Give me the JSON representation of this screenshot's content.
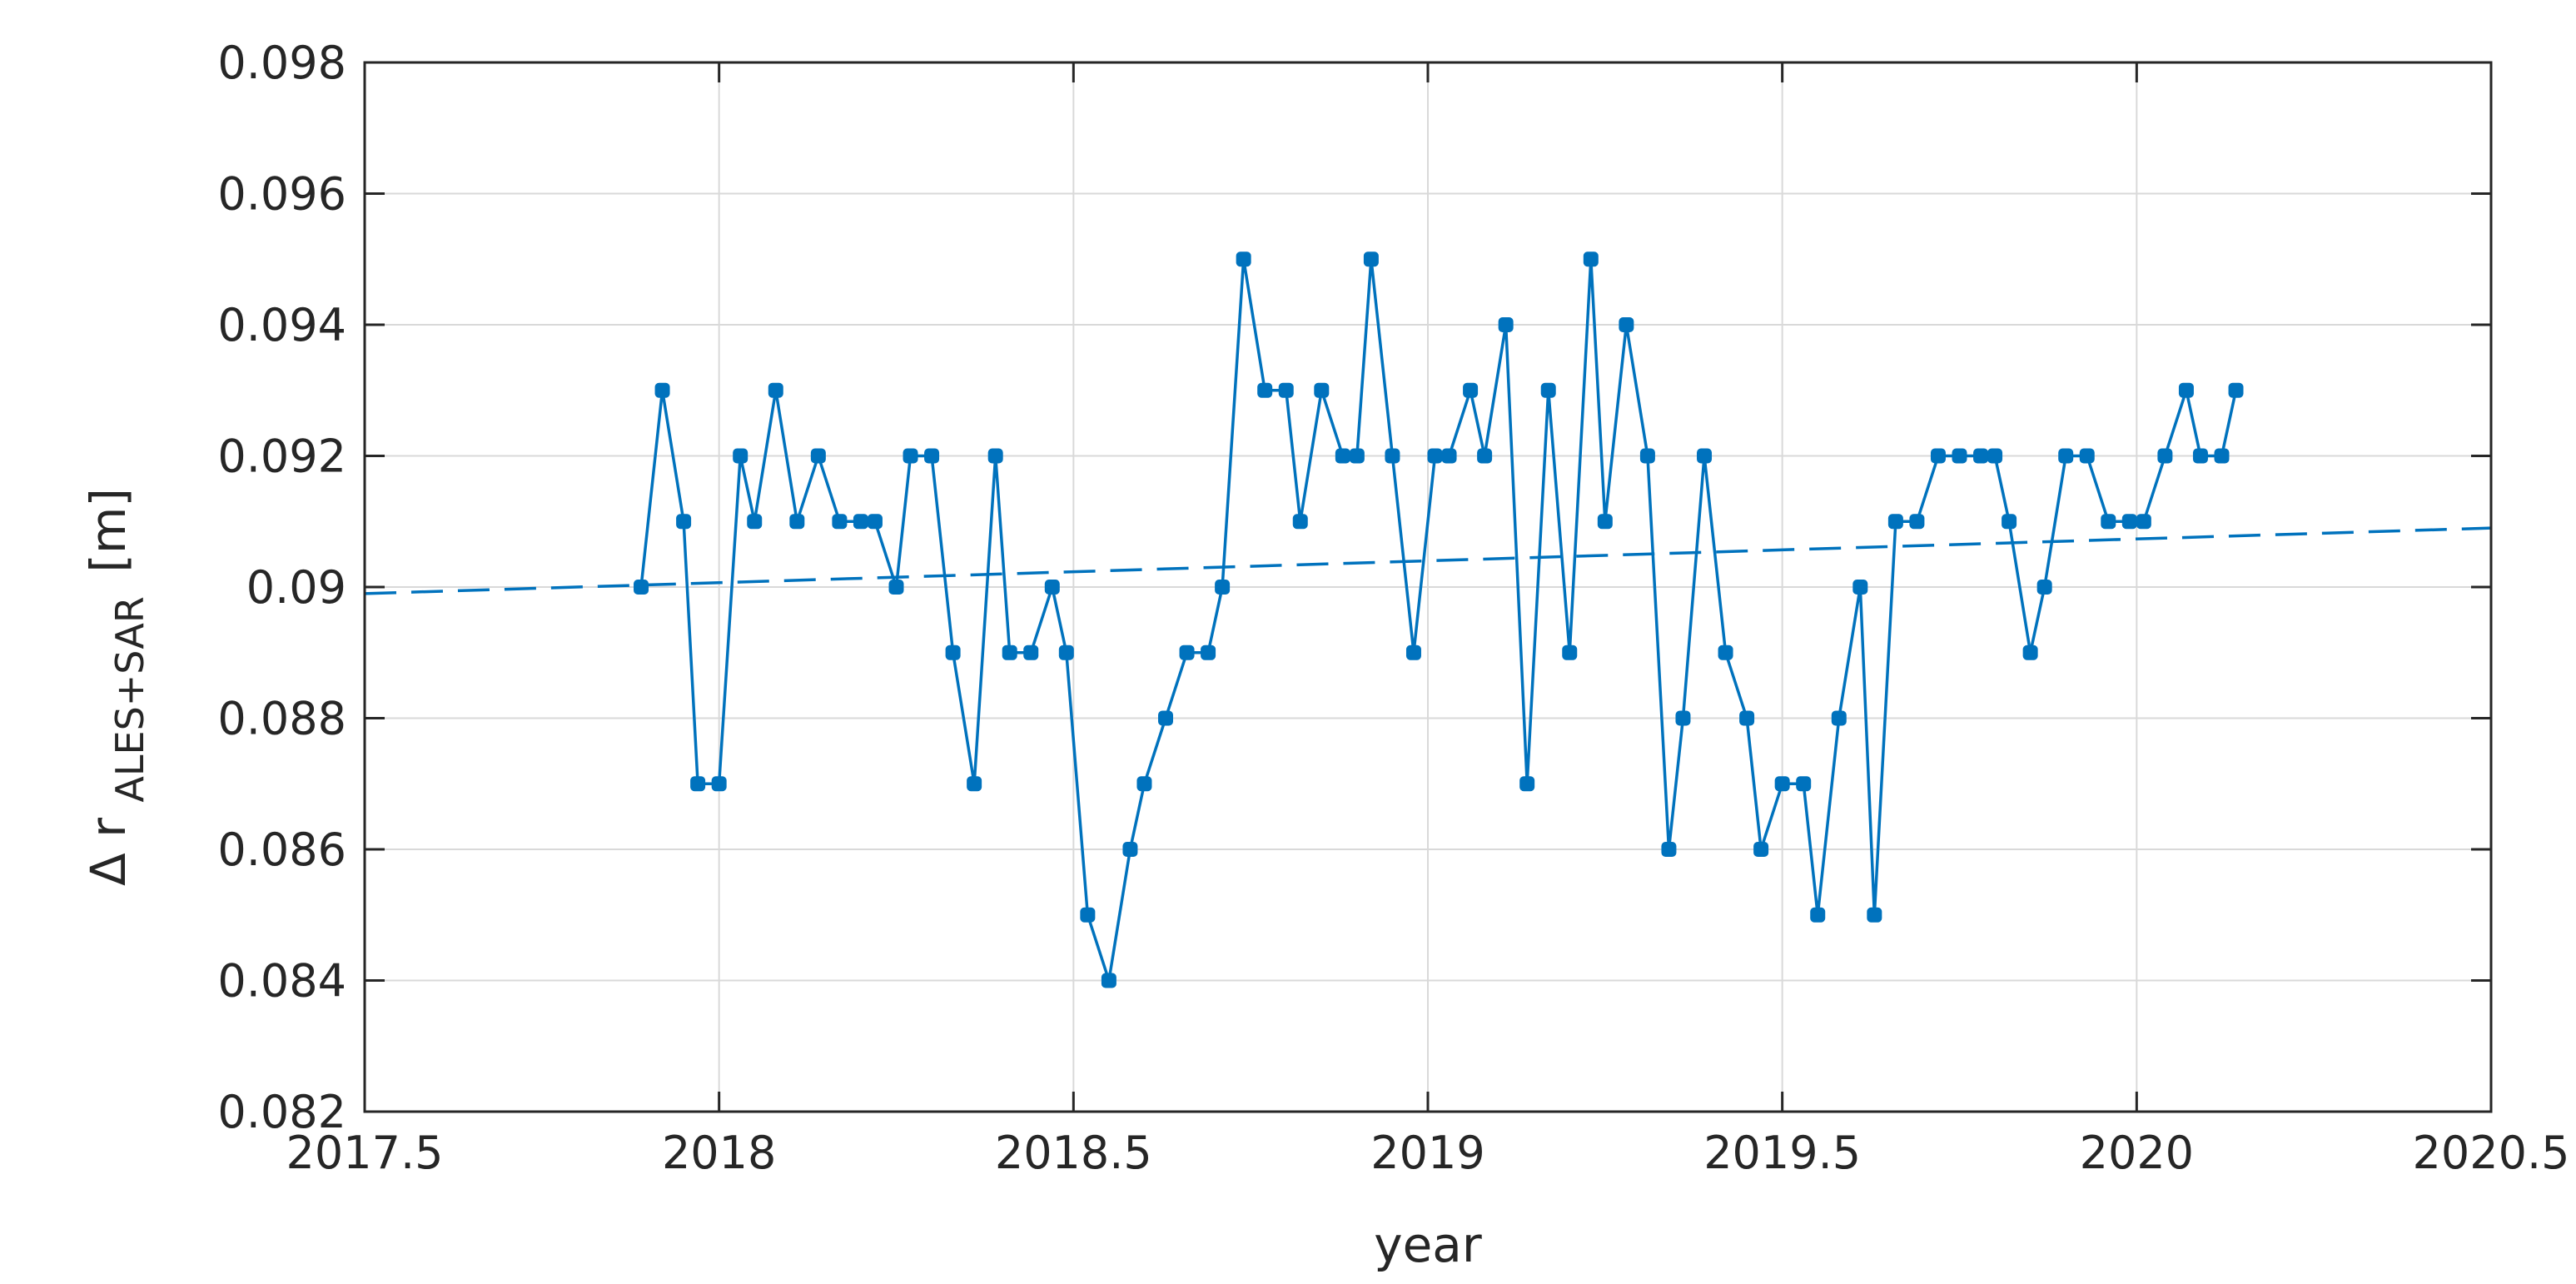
{
  "chart_data": {
    "type": "line",
    "title": "",
    "xlabel": "year",
    "ylabel": {
      "prefix": "Δ r",
      "subscript": "ALES+SAR",
      "unit": "[m]"
    },
    "xlim": [
      2017.5,
      2020.5
    ],
    "ylim": [
      0.082,
      0.098
    ],
    "xticks": [
      2017.5,
      2018,
      2018.5,
      2019,
      2019.5,
      2020,
      2020.5
    ],
    "xtick_labels": [
      "2017.5",
      "2018",
      "2018.5",
      "2019",
      "2019.5",
      "2020",
      "2020.5"
    ],
    "yticks": [
      0.082,
      0.084,
      0.086,
      0.088,
      0.09,
      0.092,
      0.094,
      0.096,
      0.098
    ],
    "ytick_labels": [
      "0.082",
      "0.084",
      "0.086",
      "0.088",
      "0.09",
      "0.092",
      "0.094",
      "0.096",
      "0.098"
    ],
    "grid": true,
    "color": "#0072BD",
    "series": [
      {
        "style": "solid-with-markers",
        "x": [
          2017.89,
          2017.92,
          2017.95,
          2017.97,
          2018.0,
          2018.03,
          2018.05,
          2018.08,
          2018.11,
          2018.14,
          2018.17,
          2018.2,
          2018.22,
          2018.25,
          2018.27,
          2018.3,
          2018.33,
          2018.36,
          2018.39,
          2018.41,
          2018.44,
          2018.47,
          2018.49,
          2018.52,
          2018.55,
          2018.58,
          2018.6,
          2018.63,
          2018.66,
          2018.69,
          2018.71,
          2018.74,
          2018.77,
          2018.8,
          2018.82,
          2018.85,
          2018.88,
          2018.9,
          2018.92,
          2018.95,
          2018.98,
          2019.01,
          2019.03,
          2019.06,
          2019.08,
          2019.11,
          2019.14,
          2019.17,
          2019.2,
          2019.23,
          2019.25,
          2019.28,
          2019.31,
          2019.34,
          2019.36,
          2019.39,
          2019.42,
          2019.45,
          2019.47,
          2019.5,
          2019.53,
          2019.55,
          2019.58,
          2019.61,
          2019.63,
          2019.66,
          2019.69,
          2019.72,
          2019.75,
          2019.78,
          2019.8,
          2019.82,
          2019.85,
          2019.87,
          2019.9,
          2019.93,
          2019.96,
          2019.99,
          2020.01,
          2020.04,
          2020.07,
          2020.09,
          2020.12,
          2020.14
        ],
        "y": [
          0.09,
          0.093,
          0.091,
          0.087,
          0.087,
          0.092,
          0.091,
          0.093,
          0.091,
          0.092,
          0.091,
          0.091,
          0.091,
          0.09,
          0.092,
          0.092,
          0.089,
          0.087,
          0.092,
          0.089,
          0.089,
          0.09,
          0.089,
          0.085,
          0.084,
          0.086,
          0.087,
          0.088,
          0.089,
          0.089,
          0.09,
          0.095,
          0.093,
          0.093,
          0.091,
          0.093,
          0.092,
          0.092,
          0.095,
          0.092,
          0.089,
          0.092,
          0.092,
          0.093,
          0.092,
          0.094,
          0.087,
          0.093,
          0.089,
          0.095,
          0.091,
          0.094,
          0.092,
          0.086,
          0.088,
          0.092,
          0.089,
          0.088,
          0.086,
          0.087,
          0.087,
          0.085,
          0.088,
          0.09,
          0.085,
          0.091,
          0.091,
          0.092,
          0.092,
          0.092,
          0.092,
          0.091,
          0.089,
          0.09,
          0.092,
          0.092,
          0.091,
          0.091,
          0.091,
          0.092,
          0.093,
          0.092,
          0.092,
          0.093
        ]
      },
      {
        "style": "dashed-trend",
        "x": [
          2017.5,
          2020.5
        ],
        "y": [
          0.0899,
          0.0909
        ]
      }
    ]
  }
}
